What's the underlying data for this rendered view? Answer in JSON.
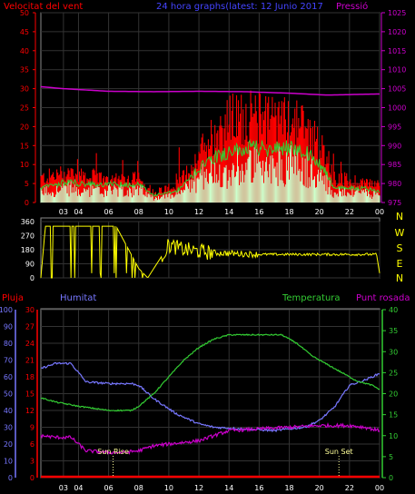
{
  "header": {
    "left_title": "Velocitat del vent",
    "center_title": "24 hora graphs(latest: 12 Junio 2017",
    "right_title": "Pressió"
  },
  "colors": {
    "bg": "#000000",
    "gust": "#ff0000",
    "wind_avg": "#33cc33",
    "wind_fill": "#ccffcc",
    "pressure": "#cc00cc",
    "direction": "#ffff00",
    "rain": "#ff0000",
    "humidity": "#7777ff",
    "temperature": "#33cc33",
    "dewpoint": "#cc00cc",
    "axis": "#ffffff",
    "grid": "#333333"
  },
  "x_ticks": [
    "03",
    "04",
    "06",
    "08",
    "10",
    "12",
    "14",
    "16",
    "18",
    "20",
    "22",
    "00"
  ],
  "chart_data": [
    {
      "type": "line",
      "name": "wind-pressure",
      "x_range": [
        1.5,
        24.0
      ],
      "left_axis": {
        "label": "Velocitat del vent",
        "ticks": [
          0,
          5,
          10,
          15,
          20,
          25,
          30,
          35,
          40,
          45,
          50
        ],
        "ylim": [
          0,
          50
        ]
      },
      "right_axis": {
        "label": "Pressió",
        "ticks": [
          975,
          980,
          985,
          990,
          995,
          1000,
          1005,
          1010,
          1015,
          1020,
          1025
        ],
        "ylim": [
          975,
          1025
        ]
      },
      "gust_profile": {
        "x": [
          1.5,
          3.5,
          4.0,
          6.0,
          8.0,
          9.0,
          10.5,
          11.5,
          12.5,
          14.0,
          15.5,
          17.0,
          18.5,
          19.5,
          20.5,
          21.0,
          23.0,
          24.0
        ],
        "y": [
          7,
          9,
          8,
          7,
          7,
          3,
          5,
          10,
          18,
          24,
          25,
          24,
          24,
          20,
          13,
          7,
          6,
          5
        ]
      },
      "avg_profile": {
        "x": [
          1.5,
          3.5,
          4.0,
          6.0,
          8.0,
          9.0,
          10.5,
          11.5,
          12.5,
          14.0,
          15.5,
          17.0,
          18.5,
          19.5,
          20.5,
          21.0,
          23.0,
          24.0
        ],
        "y": [
          4,
          6,
          5,
          5,
          5,
          2,
          3,
          7,
          12,
          14,
          15,
          15,
          15,
          13,
          8,
          4,
          4,
          3
        ]
      },
      "pressure_profile": {
        "x": [
          1.5,
          3.0,
          6.0,
          9.0,
          12.0,
          15.0,
          18.0,
          20.5,
          24.0
        ],
        "y": [
          1005.5,
          1005.0,
          1004.3,
          1004.2,
          1004.3,
          1004.2,
          1003.8,
          1003.3,
          1003.6
        ]
      }
    },
    {
      "type": "line",
      "name": "wind-direction",
      "x_range": [
        1.5,
        24.0
      ],
      "left_axis": {
        "ticks": [
          0,
          90,
          180,
          270,
          360
        ],
        "ylim": [
          0,
          360
        ]
      },
      "right_axis": {
        "ticks": [
          "N",
          "W",
          "S",
          "E",
          "N"
        ]
      },
      "direction_profile": {
        "x": [
          1.5,
          1.8,
          3.0,
          4.8,
          6.5,
          8.0,
          8.6,
          9.0,
          10.0,
          11.0,
          13.0,
          16.0,
          19.0,
          22.0,
          23.8,
          24.0
        ],
        "y": [
          0,
          330,
          330,
          330,
          330,
          60,
          0,
          60,
          210,
          180,
          160,
          150,
          150,
          150,
          150,
          30
        ]
      }
    },
    {
      "type": "line",
      "name": "rain-humidity-temp",
      "x_range": [
        1.5,
        24.0
      ],
      "labels": {
        "rain": "Pluja",
        "humidity": "Humitat",
        "temperature": "Temperatura",
        "dewpoint": "Punt rosada"
      },
      "axis_humidity": {
        "ticks": [
          0,
          10,
          20,
          30,
          40,
          50,
          60,
          70,
          80,
          90,
          100
        ],
        "ylim": [
          0,
          100
        ]
      },
      "axis_rain": {
        "ticks": [
          0,
          3,
          6,
          9,
          12,
          15,
          18,
          21,
          24,
          27,
          30
        ],
        "ylim": [
          0,
          30
        ]
      },
      "axis_temp_right": {
        "ticks": [
          0,
          5,
          10,
          15,
          20,
          25,
          30,
          35,
          40
        ],
        "ylim": [
          0,
          40
        ]
      },
      "humidity": {
        "x": [
          1.5,
          2.5,
          3.5,
          4.5,
          6.0,
          7.5,
          8.0,
          9.0,
          10.5,
          12.0,
          13.0,
          15.0,
          17.0,
          19.0,
          20.0,
          21.0,
          22.0,
          23.0,
          24.0
        ],
        "y": [
          65,
          68,
          68,
          57,
          56,
          56,
          55,
          47,
          38,
          32,
          30,
          29,
          28,
          30,
          34,
          42,
          55,
          58,
          62
        ]
      },
      "temperature": {
        "x": [
          1.5,
          2.5,
          4.0,
          6.0,
          7.5,
          8.0,
          9.0,
          10.0,
          11.0,
          12.0,
          13.0,
          14.0,
          16.0,
          17.5,
          18.5,
          19.5,
          20.5,
          21.5,
          22.5,
          23.5,
          24.0
        ],
        "y": [
          19,
          18,
          17,
          16,
          16,
          17,
          20,
          24,
          28,
          31,
          33,
          34,
          34,
          34,
          32,
          29,
          27,
          25,
          23,
          22,
          21
        ]
      },
      "dewpoint": {
        "x": [
          1.5,
          2.5,
          3.5,
          4.5,
          6.0,
          7.0,
          8.0,
          9.0,
          10.0,
          11.0,
          12.0,
          13.0,
          14.0,
          16.0,
          18.0,
          20.0,
          22.0,
          23.0,
          24.0
        ],
        "y": [
          25,
          24,
          24,
          16,
          15,
          15,
          16,
          19,
          20,
          21,
          22,
          25,
          28,
          29,
          30,
          31,
          31,
          30,
          28
        ]
      },
      "rain": {
        "x": [
          1.5,
          24.0
        ],
        "y": [
          0,
          0
        ]
      },
      "annotations": [
        {
          "text": "Sun Rise",
          "x": 6.3
        },
        {
          "text": "Sun Set",
          "x": 21.3
        }
      ]
    }
  ]
}
